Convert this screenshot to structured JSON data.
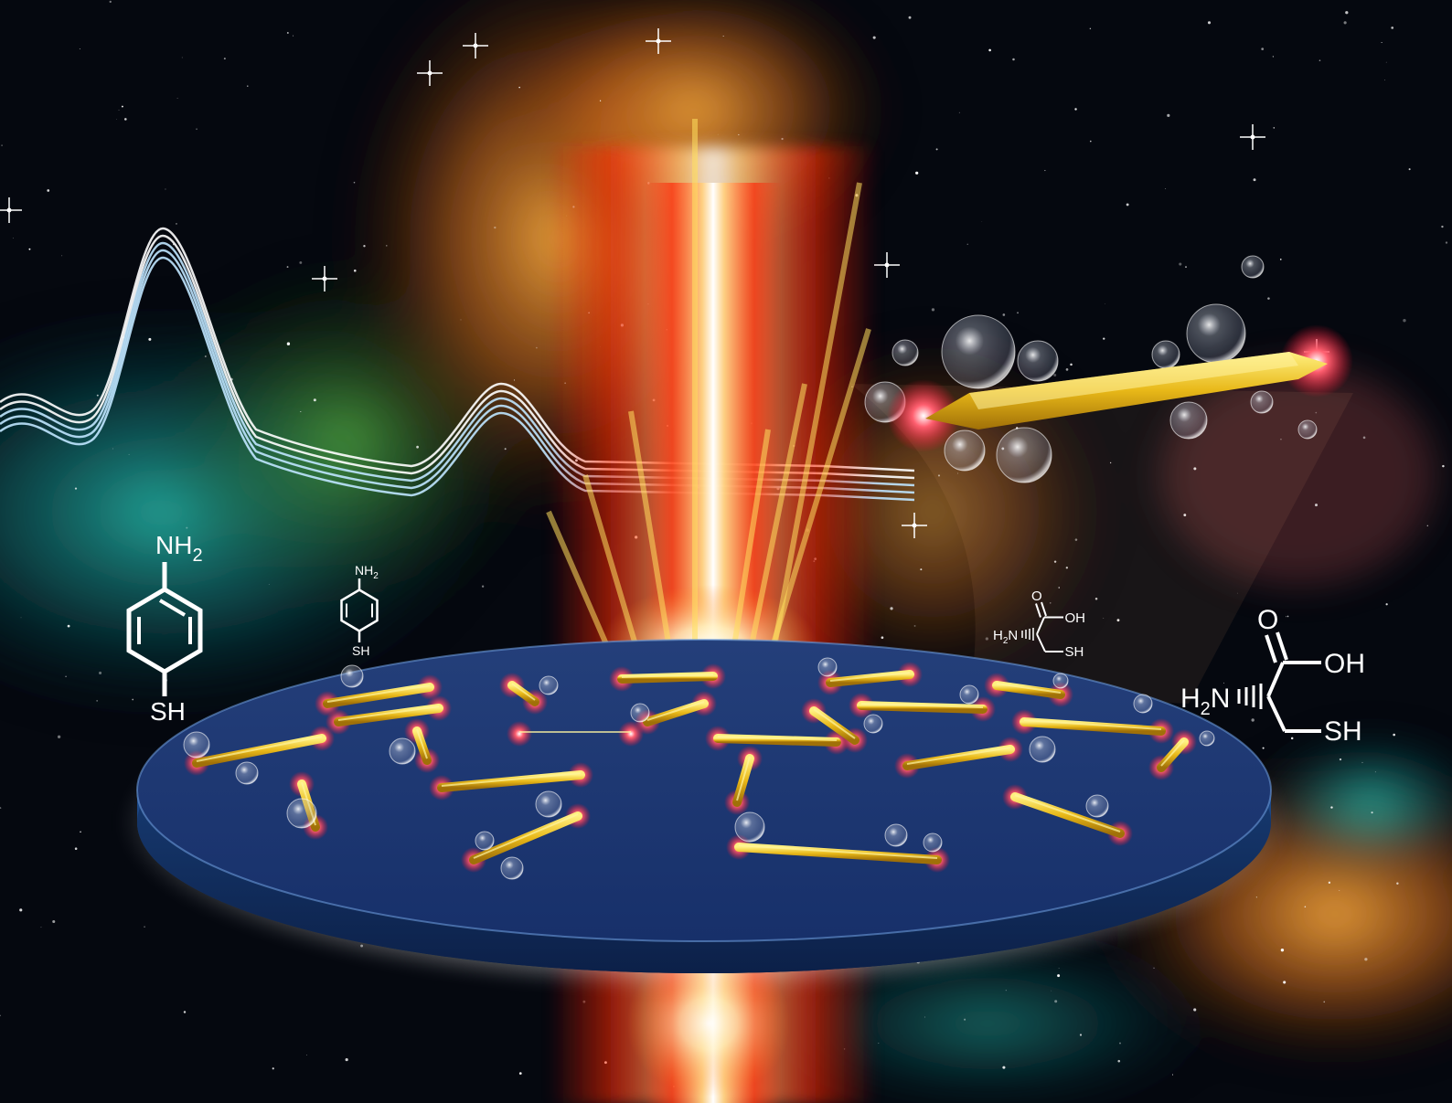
{
  "molecules": {
    "aminothiophenol_large": {
      "top": "NH",
      "top_sub": "2",
      "bottom": "SH"
    },
    "aminothiophenol_small": {
      "top": "NH",
      "top_sub": "2",
      "bottom": "SH"
    },
    "cysteine_large": {
      "o": "O",
      "oh": "OH",
      "h": "H",
      "h_sub": "2",
      "n": "N",
      "sh": "SH"
    },
    "cysteine_small": {
      "o": "O",
      "oh": "OH",
      "h": "H",
      "h_sub": "2",
      "n": "N",
      "sh": "SH"
    }
  },
  "colors": {
    "space": "#05080f",
    "teal_nebula": "#1a9a9a",
    "orange_nebula": "#f08a1a",
    "laser_red": "#ff2a10",
    "disk_blue": "#1a3a78",
    "gold_rod": "#e8c020",
    "hotspot": "#ff3040"
  }
}
